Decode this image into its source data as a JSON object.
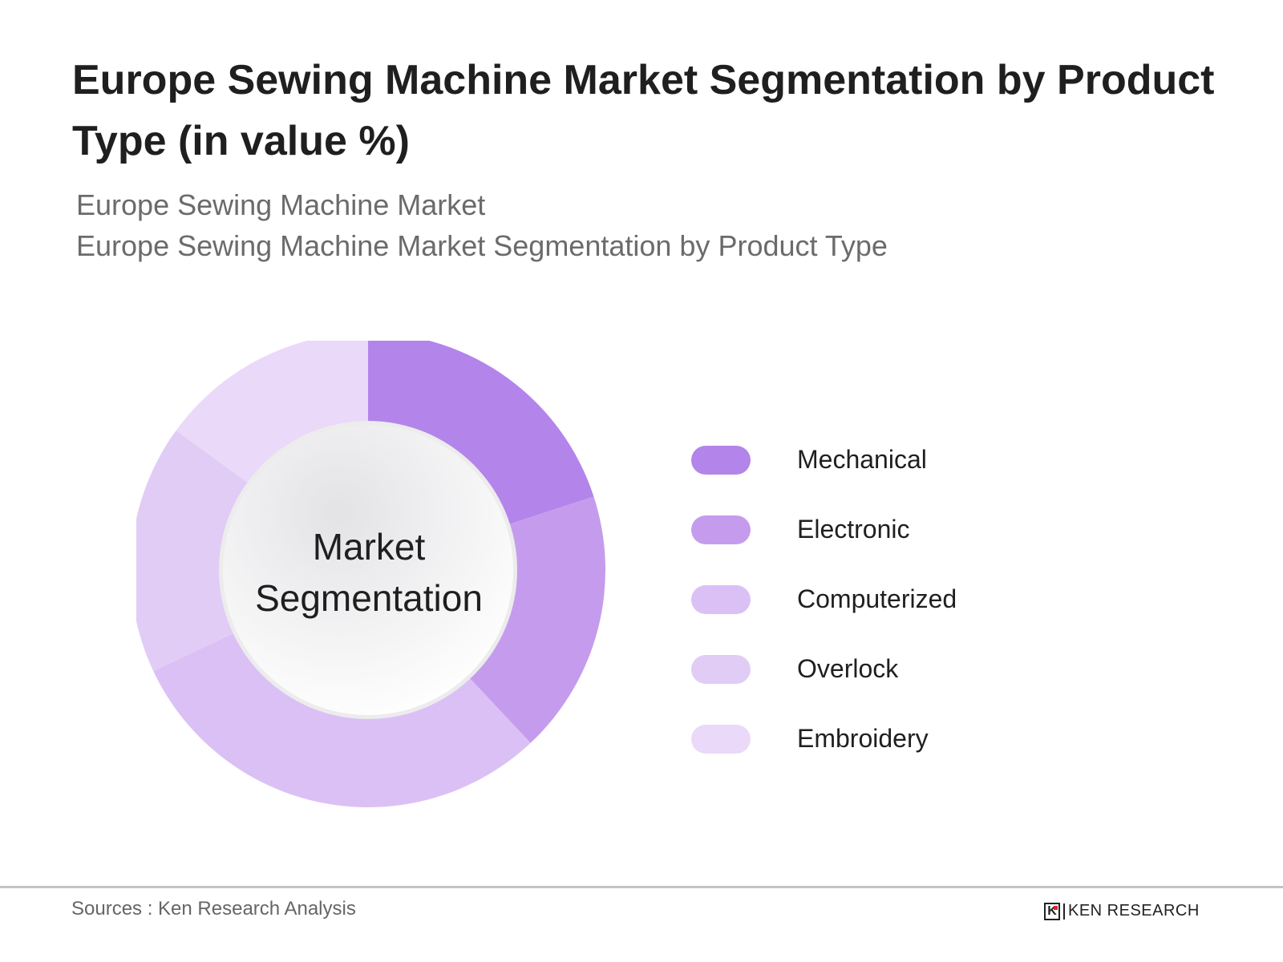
{
  "header": {
    "title": "Europe Sewing Machine Market Segmentation by Product Type (in value %)",
    "subtitle_lines": [
      "Europe Sewing Machine Market",
      "Europe Sewing Machine Market Segmentation by Product Type"
    ]
  },
  "center_label": {
    "line1": "Market",
    "line2": "Segmentation"
  },
  "legend": [
    {
      "label": "Mechanical",
      "color": "#b384ea"
    },
    {
      "label": "Electronic",
      "color": "#c59ced"
    },
    {
      "label": "Computerized",
      "color": "#dbc0f5"
    },
    {
      "label": "Overlock",
      "color": "#e1ccf6"
    },
    {
      "label": "Embroidery",
      "color": "#ead9f9"
    }
  ],
  "footer": {
    "source": "Sources : Ken Research Analysis",
    "logo_mark": "K",
    "logo_text": "KEN RESEARCH"
  },
  "chart_data": {
    "type": "pie",
    "subtype": "donut",
    "title": "Europe Sewing Machine Market Segmentation by Product Type (in value %)",
    "center_text": "Market Segmentation",
    "categories": [
      "Mechanical",
      "Electronic",
      "Computerized",
      "Overlock",
      "Embroidery"
    ],
    "values": [
      20,
      18,
      30,
      17,
      15
    ],
    "colors": [
      "#b384ea",
      "#c59ced",
      "#dbc0f5",
      "#e1ccf6",
      "#ead9f9"
    ],
    "start_angle_deg": 0,
    "direction": "clockwise",
    "legend_position": "right",
    "data_labels": false
  }
}
